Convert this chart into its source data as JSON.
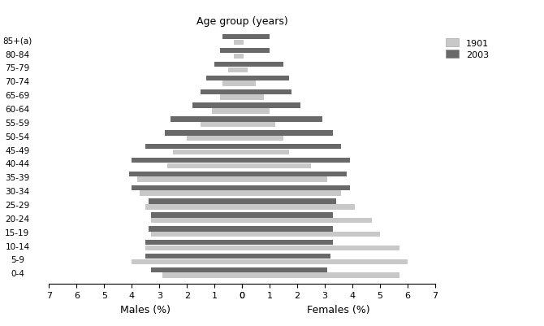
{
  "age_groups": [
    "0-4",
    "5-9",
    "10-14",
    "15-19",
    "20-24",
    "25-29",
    "30-34",
    "35-39",
    "40-44",
    "45-49",
    "50-54",
    "55-59",
    "60-64",
    "65-69",
    "70-74",
    "75-79",
    "80-84",
    "85+(a)"
  ],
  "males_1901": [
    2.9,
    4.0,
    3.5,
    3.3,
    3.3,
    3.5,
    3.7,
    3.8,
    2.7,
    2.5,
    2.0,
    1.5,
    1.1,
    0.8,
    0.7,
    0.5,
    0.3,
    0.3
  ],
  "males_2003": [
    3.3,
    3.5,
    3.5,
    3.4,
    3.3,
    3.4,
    4.0,
    4.1,
    4.0,
    3.5,
    2.8,
    2.6,
    1.8,
    1.5,
    1.3,
    1.0,
    0.8,
    0.7
  ],
  "females_1901": [
    5.7,
    6.0,
    5.7,
    5.0,
    4.7,
    4.1,
    3.6,
    3.1,
    2.5,
    1.7,
    1.5,
    1.2,
    1.0,
    0.8,
    0.5,
    0.2,
    0.05,
    0.05
  ],
  "females_2003": [
    3.1,
    3.2,
    3.3,
    3.3,
    3.3,
    3.4,
    3.9,
    3.8,
    3.9,
    3.6,
    3.3,
    2.9,
    2.1,
    1.8,
    1.7,
    1.5,
    1.0,
    1.0
  ],
  "color_1901": "#c8c8c8",
  "color_2003": "#696969",
  "xlim": 7,
  "xlabel_left": "Males (%)",
  "xlabel_right": "Females (%)",
  "title": "Age group (years)",
  "legend_labels": [
    "1901",
    "2003"
  ],
  "background_color": "#ffffff"
}
